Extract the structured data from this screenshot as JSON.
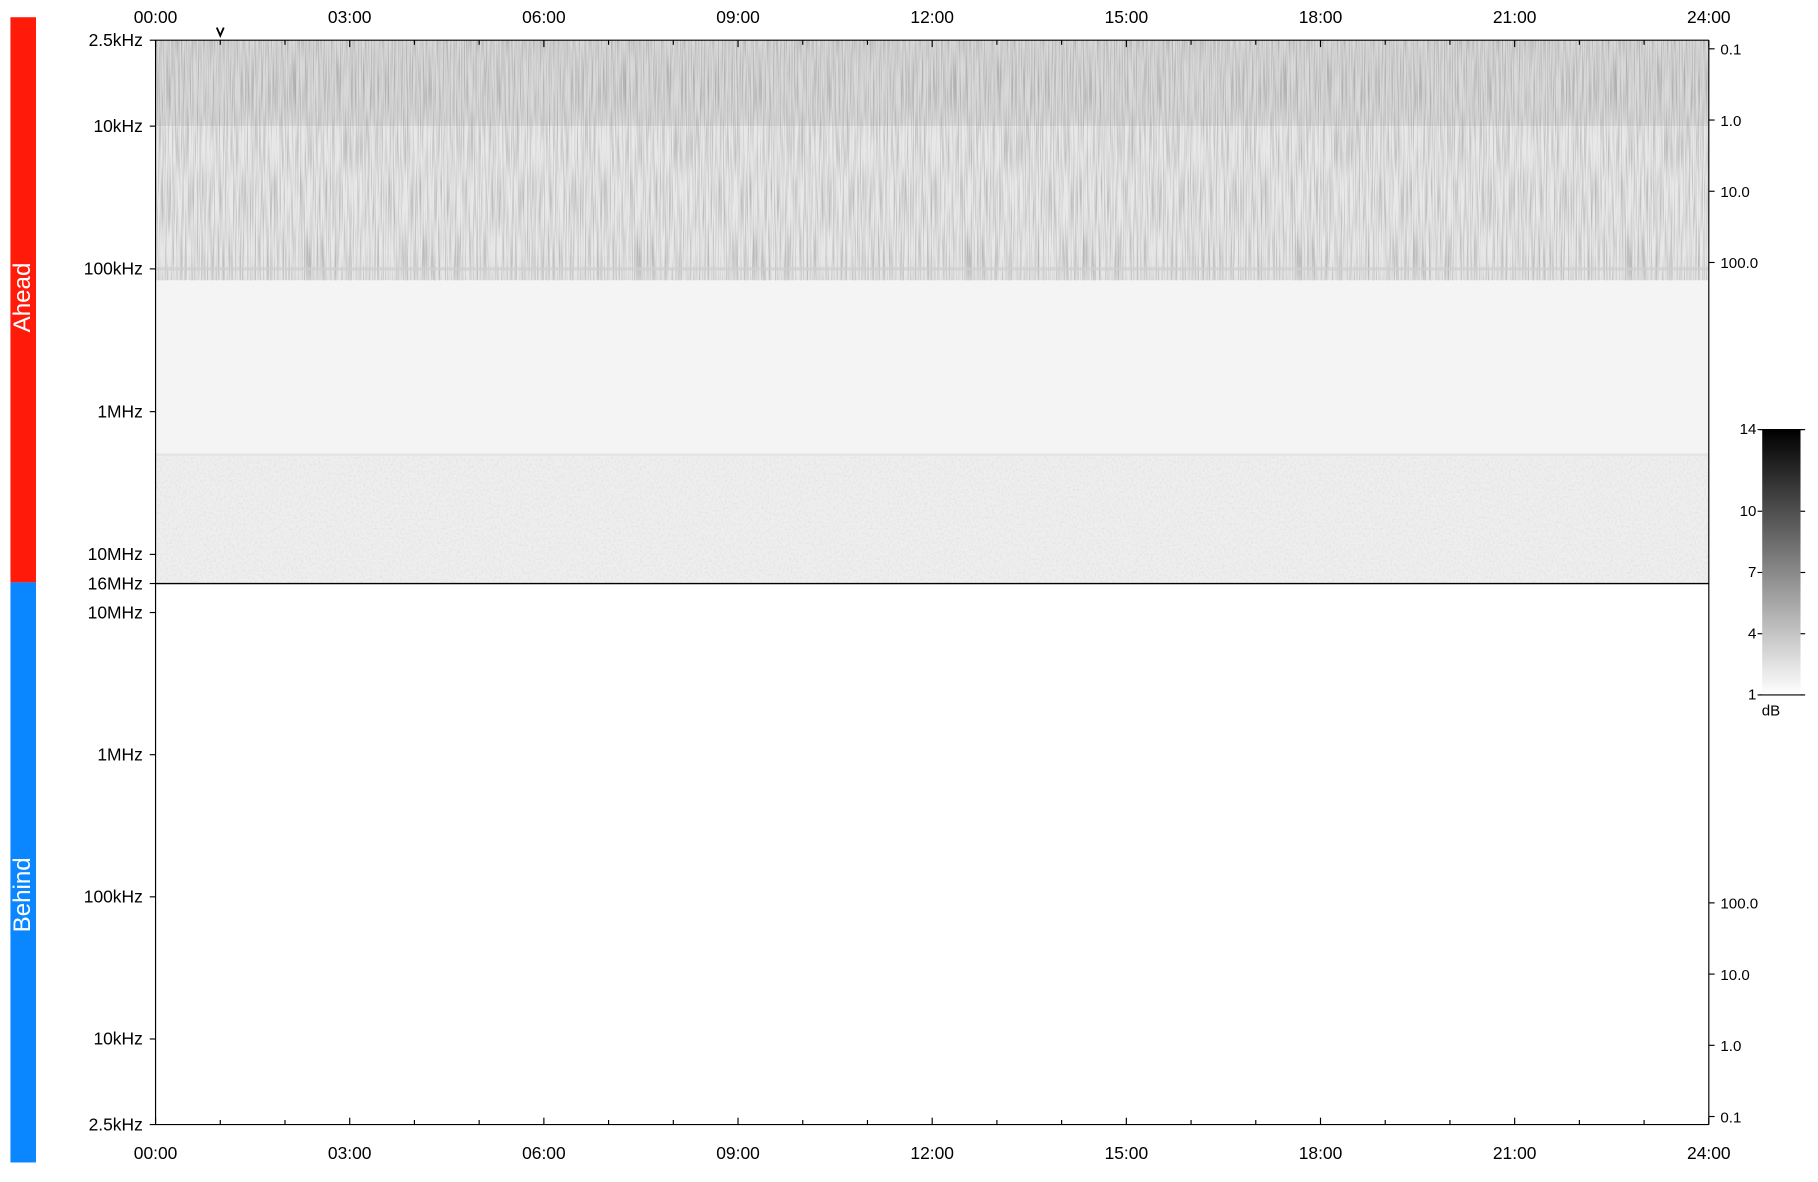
{
  "panels": {
    "ahead": {
      "label": "Ahead",
      "color": "#ff1a0a"
    },
    "behind": {
      "label": "Behind",
      "color": "#0a86ff"
    }
  },
  "time_axis": {
    "ticks": [
      "00:00",
      "03:00",
      "06:00",
      "09:00",
      "12:00",
      "15:00",
      "18:00",
      "21:00",
      "24:00"
    ]
  },
  "colorbar": {
    "unit": "dB",
    "ticks": [
      "14",
      "10",
      "7",
      "4",
      "1"
    ],
    "range": [
      1,
      14
    ]
  },
  "chart_data": [
    {
      "type": "heatmap",
      "panel": "Ahead",
      "x_range": [
        "00:00",
        "24:00"
      ],
      "y_scale": "log",
      "y_range_hz": [
        2500,
        16000000
      ],
      "y_ticks_left": [
        "2.5kHz",
        "10kHz",
        "100kHz",
        "1MHz",
        "10MHz",
        "16MHz"
      ],
      "y_ticks_right": [
        "0.1",
        "1.0",
        "10.0",
        "100.0"
      ],
      "marker_time": "01:00"
    },
    {
      "type": "heatmap",
      "panel": "Behind",
      "x_range": [
        "00:00",
        "24:00"
      ],
      "y_scale": "log",
      "y_range_hz": [
        2500,
        16000000
      ],
      "y_ticks_left": [
        "10MHz",
        "1MHz",
        "100kHz",
        "10kHz",
        "2.5kHz"
      ],
      "y_ticks_right": [
        "100.0",
        "10.0",
        "1.0",
        "0.1"
      ]
    }
  ]
}
